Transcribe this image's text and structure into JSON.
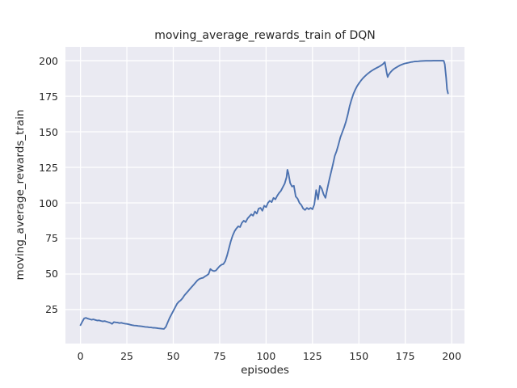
{
  "colors": {
    "figure_bg": "#ffffff",
    "plot_bg": "#eaeaf2",
    "grid": "#ffffff",
    "line": "#4c72b0",
    "text": "#262626"
  },
  "chart_data": {
    "type": "line",
    "title": "moving_average_rewards_train of DQN",
    "xlabel": "episodes",
    "ylabel": "moving_average_rewards_train",
    "legend": false,
    "grid": true,
    "xlim": [
      -8.1,
      206.9
    ],
    "ylim": [
      1.1,
      209.7
    ],
    "xticks": [
      0,
      25,
      50,
      75,
      100,
      125,
      150,
      175,
      200
    ],
    "yticks": [
      25,
      50,
      75,
      100,
      125,
      150,
      175,
      200
    ],
    "series": [
      {
        "name": "moving_average_rewards_train",
        "color": "#4c72b0",
        "points": [
          [
            0,
            14
          ],
          [
            1,
            16.5
          ],
          [
            2,
            18.8
          ],
          [
            3,
            19.2
          ],
          [
            4,
            18.6
          ],
          [
            5,
            18.2
          ],
          [
            6,
            17.8
          ],
          [
            7,
            18.1
          ],
          [
            8,
            17.7
          ],
          [
            9,
            17.3
          ],
          [
            10,
            17.4
          ],
          [
            11,
            17.0
          ],
          [
            12,
            16.7
          ],
          [
            13,
            16.9
          ],
          [
            14,
            16.5
          ],
          [
            15,
            16.1
          ],
          [
            16,
            15.7
          ],
          [
            17,
            14.9
          ],
          [
            18,
            16.2
          ],
          [
            19,
            16.0
          ],
          [
            20,
            15.8
          ],
          [
            21,
            15.5
          ],
          [
            22,
            15.7
          ],
          [
            23,
            15.3
          ],
          [
            24,
            15.1
          ],
          [
            25,
            14.9
          ],
          [
            26,
            14.6
          ],
          [
            27,
            14.3
          ],
          [
            28,
            14.0
          ],
          [
            29,
            13.8
          ],
          [
            30,
            13.7
          ],
          [
            31,
            13.5
          ],
          [
            32,
            13.4
          ],
          [
            33,
            13.2
          ],
          [
            34,
            13.0
          ],
          [
            35,
            12.8
          ],
          [
            36,
            12.7
          ],
          [
            37,
            12.5
          ],
          [
            38,
            12.4
          ],
          [
            39,
            12.2
          ],
          [
            40,
            12.1
          ],
          [
            41,
            12.0
          ],
          [
            42,
            11.8
          ],
          [
            43,
            11.7
          ],
          [
            44,
            11.5
          ],
          [
            45,
            11.4
          ],
          [
            46,
            12.8
          ],
          [
            47,
            16.0
          ],
          [
            48,
            19.0
          ],
          [
            49,
            21.5
          ],
          [
            50,
            24.0
          ],
          [
            51,
            26.5
          ],
          [
            52,
            29.0
          ],
          [
            53,
            30.5
          ],
          [
            54,
            31.5
          ],
          [
            55,
            33.0
          ],
          [
            56,
            35.0
          ],
          [
            57,
            36.5
          ],
          [
            58,
            38.0
          ],
          [
            59,
            39.5
          ],
          [
            60,
            41.0
          ],
          [
            61,
            42.5
          ],
          [
            62,
            44.0
          ],
          [
            63,
            45.5
          ],
          [
            64,
            46.5
          ],
          [
            65,
            47.0
          ],
          [
            66,
            47.3
          ],
          [
            67,
            48.2
          ],
          [
            68,
            49.0
          ],
          [
            69,
            50.0
          ],
          [
            70,
            53.5
          ],
          [
            71,
            52.5
          ],
          [
            72,
            52.0
          ],
          [
            73,
            52.5
          ],
          [
            74,
            54.0
          ],
          [
            75,
            55.5
          ],
          [
            76,
            56.5
          ],
          [
            77,
            57.0
          ],
          [
            78,
            59.0
          ],
          [
            79,
            63.0
          ],
          [
            80,
            68.0
          ],
          [
            81,
            73.0
          ],
          [
            82,
            77.0
          ],
          [
            83,
            80.0
          ],
          [
            84,
            82.0
          ],
          [
            85,
            83.5
          ],
          [
            86,
            83.0
          ],
          [
            87,
            86.0
          ],
          [
            88,
            87.5
          ],
          [
            89,
            86.5
          ],
          [
            90,
            89.0
          ],
          [
            91,
            90.5
          ],
          [
            92,
            92.0
          ],
          [
            93,
            91.0
          ],
          [
            94,
            94.0
          ],
          [
            95,
            92.5
          ],
          [
            96,
            96.0
          ],
          [
            97,
            96.5
          ],
          [
            98,
            94.5
          ],
          [
            99,
            98.0
          ],
          [
            100,
            97.0
          ],
          [
            101,
            100.0
          ],
          [
            102,
            101.5
          ],
          [
            103,
            100.5
          ],
          [
            104,
            103.5
          ],
          [
            105,
            102.5
          ],
          [
            106,
            105.0
          ],
          [
            107,
            107.0
          ],
          [
            108,
            108.5
          ],
          [
            109,
            111.0
          ],
          [
            110,
            113.5
          ],
          [
            111,
            118.0
          ],
          [
            111.5,
            123.3
          ],
          [
            112,
            121.0
          ],
          [
            113,
            114.0
          ],
          [
            114,
            111.5
          ],
          [
            115,
            112.0
          ],
          [
            116,
            104.5
          ],
          [
            117,
            103.0
          ],
          [
            118,
            100.0
          ],
          [
            119,
            98.5
          ],
          [
            120,
            96.0
          ],
          [
            121,
            95.0
          ],
          [
            122,
            96.5
          ],
          [
            123,
            95.5
          ],
          [
            124,
            96.5
          ],
          [
            125,
            95.5
          ],
          [
            126,
            99.0
          ],
          [
            127,
            109.0
          ],
          [
            128,
            102.5
          ],
          [
            129,
            112.0
          ],
          [
            130,
            110.0
          ],
          [
            131,
            106.0
          ],
          [
            132,
            103.5
          ],
          [
            133,
            110.0
          ],
          [
            134,
            116.0
          ],
          [
            135,
            121.5
          ],
          [
            136,
            127.0
          ],
          [
            137,
            133.0
          ],
          [
            138,
            136.5
          ],
          [
            139,
            141.0
          ],
          [
            140,
            146.0
          ],
          [
            141,
            149.5
          ],
          [
            142,
            153.0
          ],
          [
            143,
            157.0
          ],
          [
            144,
            162.0
          ],
          [
            145,
            168.0
          ],
          [
            146,
            172.5
          ],
          [
            147,
            176.5
          ],
          [
            148,
            179.5
          ],
          [
            149,
            182.0
          ],
          [
            150,
            184.0
          ],
          [
            151,
            185.8
          ],
          [
            152,
            187.4
          ],
          [
            153,
            188.8
          ],
          [
            154,
            190.0
          ],
          [
            155,
            191.1
          ],
          [
            156,
            192.1
          ],
          [
            157,
            193.0
          ],
          [
            158,
            193.8
          ],
          [
            159,
            194.5
          ],
          [
            160,
            195.2
          ],
          [
            161,
            195.9
          ],
          [
            162,
            196.7
          ],
          [
            163,
            197.6
          ],
          [
            163.5,
            198.4
          ],
          [
            164,
            199.0
          ],
          [
            165,
            191.5
          ],
          [
            165.5,
            188.5
          ],
          [
            166,
            190.0
          ],
          [
            167,
            191.8
          ],
          [
            168,
            193.2
          ],
          [
            169,
            194.3
          ],
          [
            170,
            195.1
          ],
          [
            171,
            195.9
          ],
          [
            172,
            196.6
          ],
          [
            173,
            197.2
          ],
          [
            174,
            197.7
          ],
          [
            175,
            198.1
          ],
          [
            176,
            198.4
          ],
          [
            177,
            198.7
          ],
          [
            178,
            199.0
          ],
          [
            179,
            199.2
          ],
          [
            180,
            199.4
          ],
          [
            181,
            199.5
          ],
          [
            182,
            199.6
          ],
          [
            183,
            199.7
          ],
          [
            184,
            199.8
          ],
          [
            185,
            199.85
          ],
          [
            186,
            199.9
          ],
          [
            187,
            199.9
          ],
          [
            188,
            199.95
          ],
          [
            189,
            199.95
          ],
          [
            190,
            200
          ],
          [
            191,
            200
          ],
          [
            192,
            200
          ],
          [
            193,
            200
          ],
          [
            194,
            200
          ],
          [
            195,
            200
          ],
          [
            195.7,
            199.9
          ],
          [
            196.3,
            197.5
          ],
          [
            197,
            188.0
          ],
          [
            197.5,
            180.0
          ],
          [
            198,
            177.0
          ]
        ]
      }
    ]
  }
}
